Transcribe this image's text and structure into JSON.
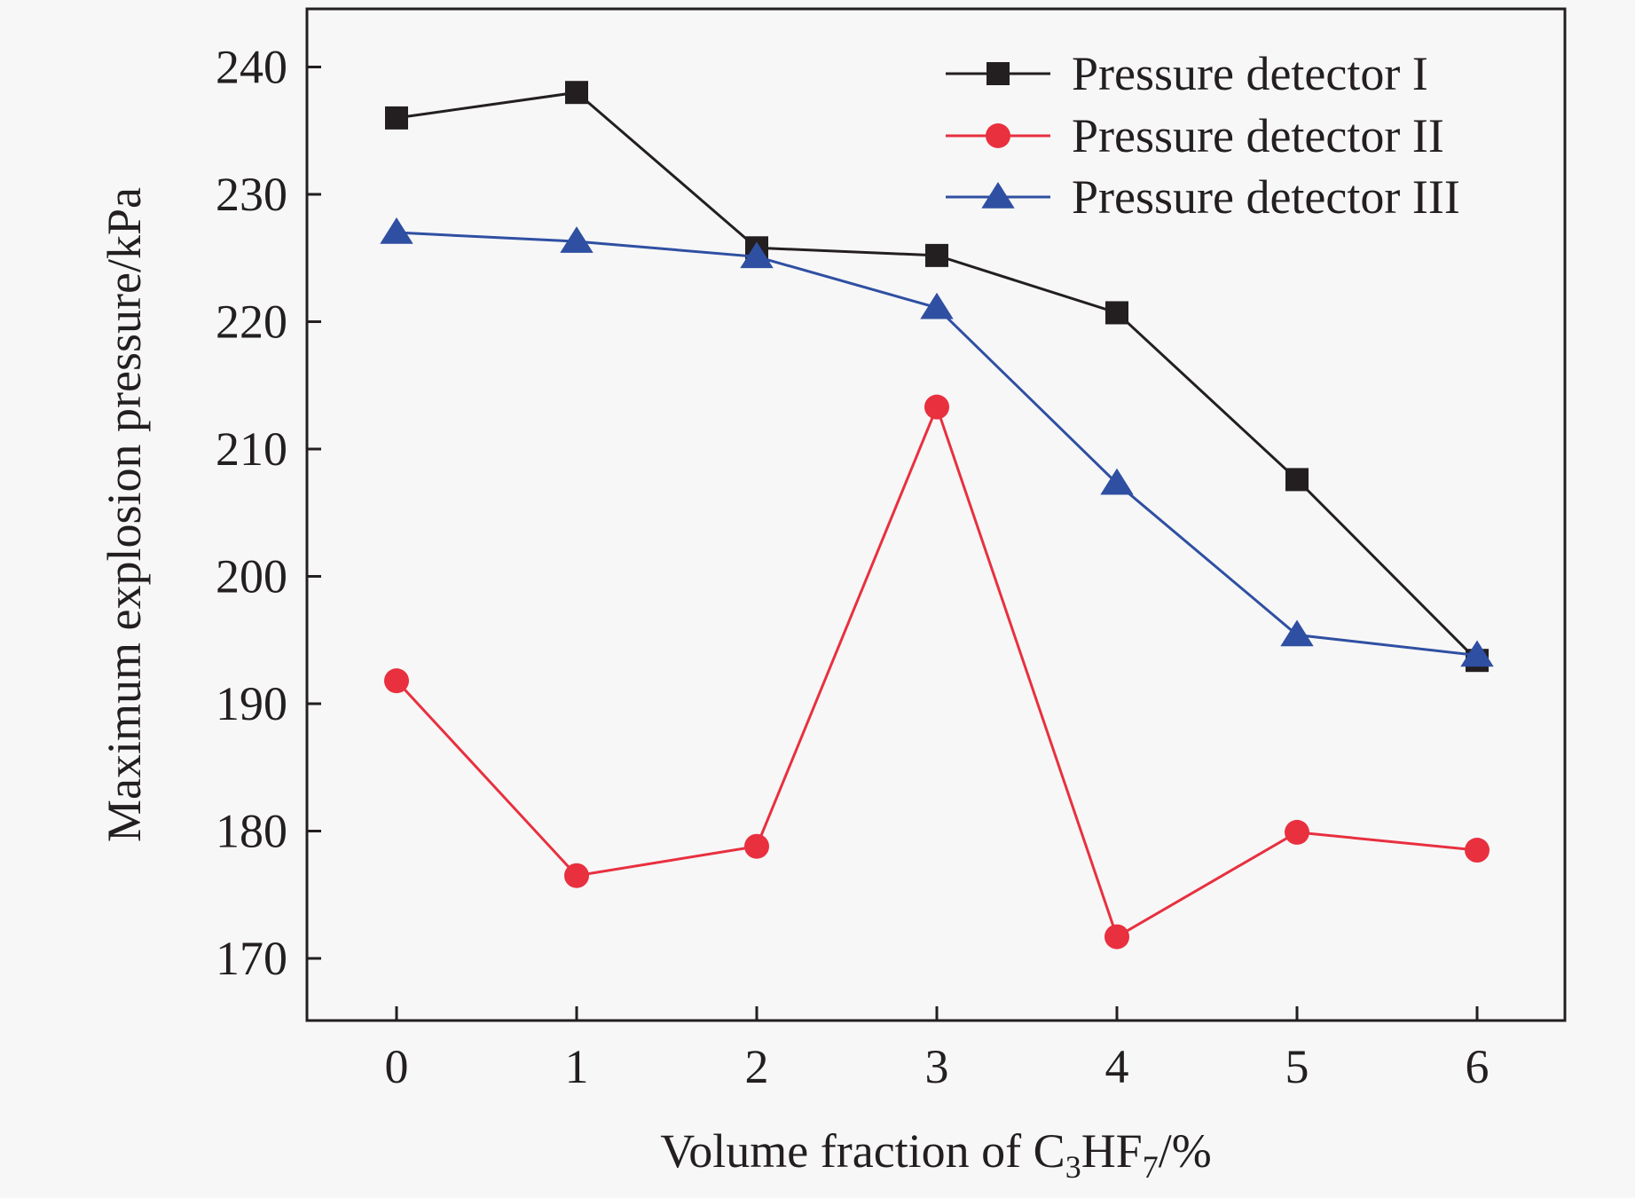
{
  "chart_data": {
    "type": "line",
    "x": [
      0,
      1,
      2,
      3,
      4,
      5,
      6
    ],
    "x_tick_labels": [
      "0",
      "1",
      "2",
      "3",
      "4",
      "5",
      "6"
    ],
    "y_ticks": [
      170,
      180,
      190,
      200,
      210,
      220,
      230,
      240
    ],
    "y_tick_labels": [
      "170",
      "180",
      "190",
      "200",
      "210",
      "220",
      "230",
      "240"
    ],
    "xlim": [
      -0.5,
      6.5
    ],
    "ylim": [
      165,
      245
    ],
    "xlabel": {
      "prefix": "Volume fraction of C",
      "sub1": "3",
      "mid": "HF",
      "sub2": "7",
      "suffix": "/%"
    },
    "ylabel": "Maximum explosion pressure/kPa",
    "grid": false,
    "legend_position": "top-right",
    "series": [
      {
        "name": "Pressure detector I",
        "color": "#231f20",
        "marker": "square",
        "values": [
          236,
          238,
          225.8,
          225.2,
          220.7,
          207.6,
          193.4
        ]
      },
      {
        "name": "Pressure detector II",
        "color": "#e8303f",
        "marker": "circle",
        "values": [
          191.8,
          176.5,
          178.8,
          213.3,
          171.7,
          179.9,
          178.5
        ]
      },
      {
        "name": "Pressure detector III",
        "color": "#2f4fa2",
        "marker": "triangle",
        "values": [
          227,
          226.3,
          225.1,
          221.1,
          207.3,
          195.4,
          193.8
        ]
      }
    ]
  }
}
